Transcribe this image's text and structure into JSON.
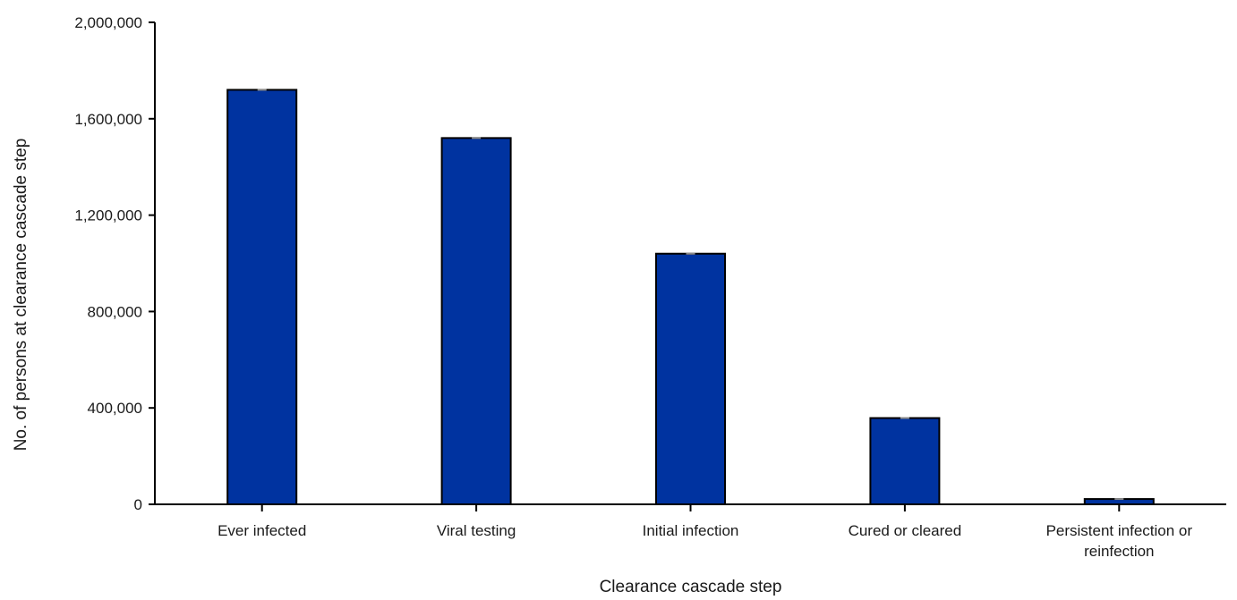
{
  "chart_data": {
    "type": "bar",
    "title": "",
    "xlabel": "Clearance cascade step",
    "ylabel": "No. of persons at clearance cascade step",
    "categories": [
      [
        "Ever infected"
      ],
      [
        "Viral testing"
      ],
      [
        "Initial infection"
      ],
      [
        "Cured or cleared"
      ],
      [
        "Persistent infection or",
        "reinfection"
      ]
    ],
    "values": [
      1720000,
      1520000,
      1040000,
      358000,
      22000
    ],
    "ylim": [
      0,
      2000000
    ],
    "yticks": [
      {
        "value": 0,
        "label": "0"
      },
      {
        "value": 400000,
        "label": "400,000"
      },
      {
        "value": 800000,
        "label": "800,000"
      },
      {
        "value": 1200000,
        "label": "1,200,000"
      },
      {
        "value": 1600000,
        "label": "1,600,000"
      },
      {
        "value": 2000000,
        "label": "2,000,000"
      }
    ],
    "grid": false,
    "error_bars": true,
    "colors": {
      "bar_fill": "#0033a0",
      "bar_stroke": "#000000",
      "error_bar": "#8a8a8a",
      "axis": "#000000",
      "text": "#1a1a1a"
    }
  }
}
